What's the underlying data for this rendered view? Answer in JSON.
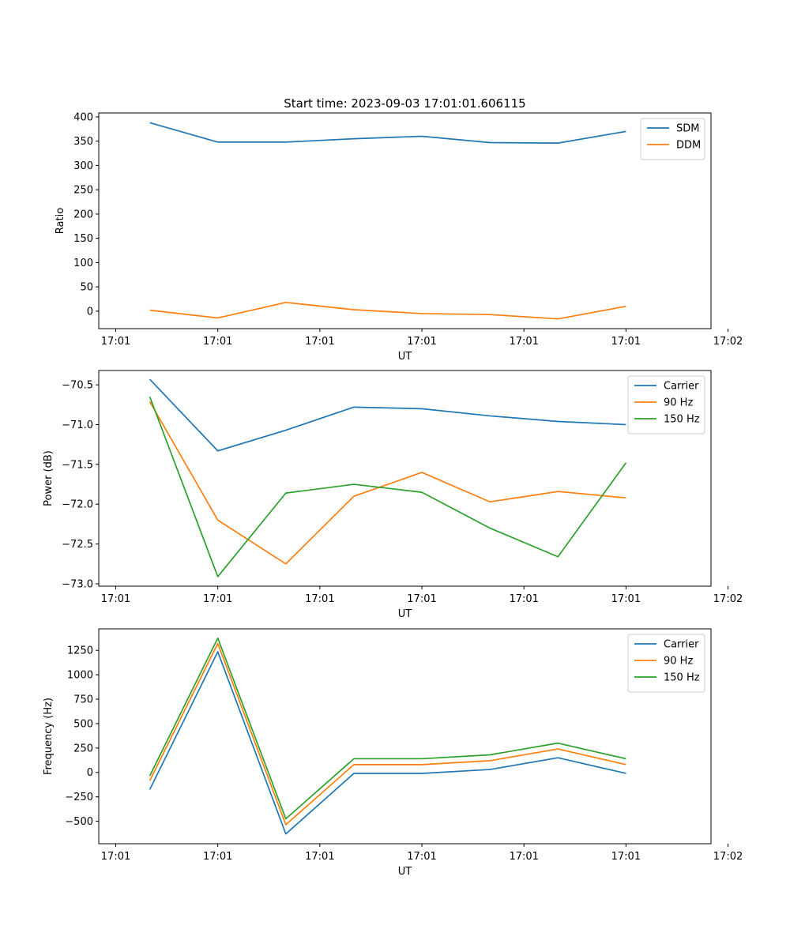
{
  "figure": {
    "title": "Start time: 2023-09-03 17:01:01.606115"
  },
  "colors": {
    "blue": "#1f77b4",
    "orange": "#ff7f0e",
    "green": "#2ca02c"
  },
  "chart_data": [
    {
      "type": "line",
      "title": "Start time: 2023-09-03 17:01:01.606115",
      "xlabel": "UT",
      "ylabel": "Ratio",
      "x": [
        1,
        2,
        3,
        4,
        5,
        6,
        7,
        8
      ],
      "xlim": [
        0.25,
        9.25
      ],
      "xticks": [
        0.5,
        2,
        3.5,
        5,
        6.5,
        8,
        9.5
      ],
      "xticklabels": [
        "17:01",
        "17:01",
        "17:01",
        "17:01",
        "17:01",
        "17:01",
        "17:02"
      ],
      "ylim": [
        -36,
        408
      ],
      "yticks": [
        0,
        50,
        100,
        150,
        200,
        250,
        300,
        350,
        400
      ],
      "legend": "top-right",
      "series": [
        {
          "name": "SDM",
          "color": "#1f77b4",
          "values": [
            388,
            348,
            348,
            355,
            360,
            347,
            346,
            370
          ]
        },
        {
          "name": "DDM",
          "color": "#ff7f0e",
          "values": [
            2,
            -14,
            18,
            3,
            -5,
            -7,
            -16,
            10
          ]
        }
      ]
    },
    {
      "type": "line",
      "title": "",
      "xlabel": "UT",
      "ylabel": "Power (dB)",
      "x": [
        1,
        2,
        3,
        4,
        5,
        6,
        7,
        8
      ],
      "xlim": [
        0.25,
        9.25
      ],
      "xticks": [
        0.5,
        2,
        3.5,
        5,
        6.5,
        8,
        9.5
      ],
      "xticklabels": [
        "17:01",
        "17:01",
        "17:01",
        "17:01",
        "17:01",
        "17:01",
        "17:02"
      ],
      "ylim": [
        -73.03,
        -70.32
      ],
      "yticks": [
        -73.0,
        -72.5,
        -72.0,
        -71.5,
        -71.0,
        -70.5
      ],
      "yticklabels": [
        "−73.0",
        "−72.5",
        "−72.0",
        "−71.5",
        "−71.0",
        "−70.5"
      ],
      "legend": "top-right",
      "series": [
        {
          "name": "Carrier",
          "color": "#1f77b4",
          "values": [
            -70.43,
            -71.33,
            -71.07,
            -70.78,
            -70.8,
            -70.89,
            -70.96,
            -71.0
          ]
        },
        {
          "name": "90 Hz",
          "color": "#ff7f0e",
          "values": [
            -70.71,
            -72.2,
            -72.75,
            -71.9,
            -71.6,
            -71.97,
            -71.84,
            -71.92
          ]
        },
        {
          "name": "150 Hz",
          "color": "#2ca02c",
          "values": [
            -70.65,
            -72.91,
            -71.86,
            -71.75,
            -71.85,
            -72.3,
            -72.66,
            -71.48
          ]
        }
      ]
    },
    {
      "type": "line",
      "title": "",
      "xlabel": "UT",
      "ylabel": "Frequency (Hz)",
      "x": [
        1,
        2,
        3,
        4,
        5,
        6,
        7,
        8
      ],
      "xlim": [
        0.25,
        9.25
      ],
      "xticks": [
        0.5,
        2,
        3.5,
        5,
        6.5,
        8,
        9.5
      ],
      "xticklabels": [
        "17:01",
        "17:01",
        "17:01",
        "17:01",
        "17:01",
        "17:01",
        "17:02"
      ],
      "ylim": [
        -730,
        1470
      ],
      "yticks": [
        -500,
        -250,
        0,
        250,
        500,
        750,
        1000,
        1250
      ],
      "yticklabels": [
        "−500",
        "−250",
        "0",
        "250",
        "500",
        "750",
        "1000",
        "1250"
      ],
      "legend": "top-right",
      "series": [
        {
          "name": "Carrier",
          "color": "#1f77b4",
          "values": [
            -175,
            1235,
            -630,
            -10,
            -10,
            30,
            150,
            -10
          ]
        },
        {
          "name": "90 Hz",
          "color": "#ff7f0e",
          "values": [
            -85,
            1320,
            -535,
            80,
            80,
            120,
            240,
            80
          ]
        },
        {
          "name": "150 Hz",
          "color": "#2ca02c",
          "values": [
            -35,
            1375,
            -475,
            140,
            140,
            180,
            300,
            140
          ]
        }
      ]
    }
  ]
}
